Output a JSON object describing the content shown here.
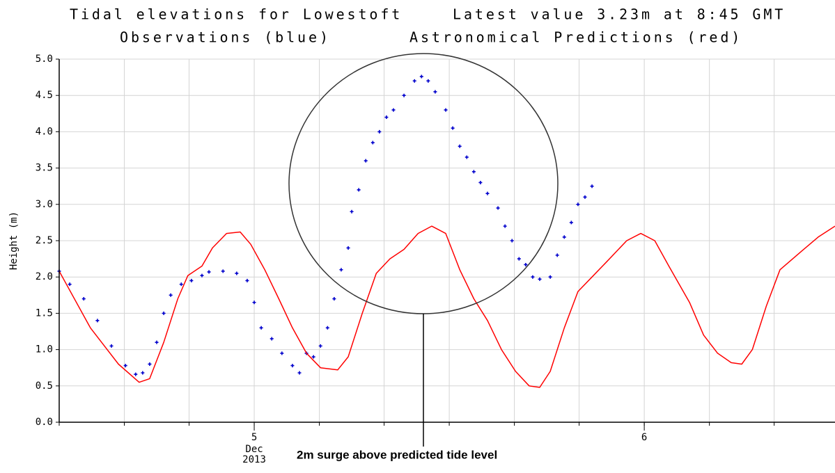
{
  "chart_data": {
    "type": "scatter-line",
    "title": "Tidal elevations for Lowestoft",
    "subtitle": "Latest value 3.23m at 8:45 GMT",
    "ylabel": "Height (m)",
    "annotation": "2m surge above predicted tide level",
    "x_month": "Dec",
    "x_year": "2013",
    "xlim": [
      4.5,
      6.489
    ],
    "xticks": [
      5,
      6
    ],
    "xgrid": [
      4.5,
      4.667,
      4.833,
      5,
      5.167,
      5.333,
      5.5,
      5.667,
      5.833,
      6,
      6.167,
      6.333
    ],
    "ylim": [
      0,
      5
    ],
    "yticks": [
      {
        "value": 0,
        "label": "0.0"
      },
      {
        "value": 0.5,
        "label": "0.5"
      },
      {
        "value": 1,
        "label": "1.0"
      },
      {
        "value": 1.5,
        "label": "1.5"
      },
      {
        "value": 2,
        "label": "2.0"
      },
      {
        "value": 2.5,
        "label": "2.5"
      },
      {
        "value": 3,
        "label": "3.0"
      },
      {
        "value": 3.5,
        "label": "3.5"
      },
      {
        "value": 4,
        "label": "4.0"
      },
      {
        "value": 4.5,
        "label": "4.5"
      },
      {
        "value": 5,
        "label": "5.0"
      }
    ],
    "grid": true,
    "series": [
      {
        "name": "Observations (blue)",
        "color": "#0000cc",
        "style": "markers",
        "x": [
          4.5,
          4.527,
          4.563,
          4.598,
          4.634,
          4.67,
          4.696,
          4.714,
          4.732,
          4.75,
          4.768,
          4.786,
          4.813,
          4.839,
          4.866,
          4.884,
          4.92,
          4.955,
          4.982,
          5.0,
          5.018,
          5.045,
          5.071,
          5.098,
          5.116,
          5.134,
          5.152,
          5.17,
          5.188,
          5.205,
          5.223,
          5.241,
          5.25,
          5.268,
          5.286,
          5.304,
          5.321,
          5.339,
          5.357,
          5.384,
          5.411,
          5.429,
          5.446,
          5.464,
          5.491,
          5.509,
          5.527,
          5.545,
          5.563,
          5.58,
          5.598,
          5.625,
          5.643,
          5.661,
          5.679,
          5.696,
          5.714,
          5.732,
          5.759,
          5.777,
          5.795,
          5.813,
          5.83,
          5.848,
          5.866
        ],
        "values": [
          2.08,
          1.9,
          1.7,
          1.4,
          1.05,
          0.78,
          0.66,
          0.68,
          0.8,
          1.1,
          1.5,
          1.75,
          1.9,
          1.95,
          2.02,
          2.07,
          2.08,
          2.05,
          1.95,
          1.65,
          1.3,
          1.15,
          0.95,
          0.78,
          0.68,
          0.95,
          0.9,
          1.05,
          1.3,
          1.7,
          2.1,
          2.4,
          2.9,
          3.2,
          3.6,
          3.85,
          4.0,
          4.2,
          4.3,
          4.5,
          4.7,
          4.76,
          4.7,
          4.55,
          4.3,
          4.05,
          3.8,
          3.65,
          3.45,
          3.3,
          3.15,
          2.95,
          2.7,
          2.5,
          2.25,
          2.17,
          2.0,
          1.97,
          2.0,
          2.3,
          2.55,
          2.75,
          3.0,
          3.1,
          3.25
        ]
      },
      {
        "name": "Astronomical Predictions (red)",
        "color": "#ff0000",
        "style": "line",
        "x": [
          4.5,
          4.58,
          4.652,
          4.705,
          4.732,
          4.768,
          4.804,
          4.83,
          4.866,
          4.893,
          4.929,
          4.964,
          4.991,
          5.027,
          5.063,
          5.098,
          5.134,
          5.17,
          5.214,
          5.241,
          5.277,
          5.313,
          5.348,
          5.384,
          5.42,
          5.455,
          5.491,
          5.527,
          5.563,
          5.598,
          5.634,
          5.67,
          5.705,
          5.732,
          5.759,
          5.795,
          5.83,
          5.866,
          5.902,
          5.955,
          5.991,
          6.027,
          6.063,
          6.116,
          6.152,
          6.188,
          6.223,
          6.25,
          6.277,
          6.313,
          6.348,
          6.402,
          6.446,
          6.489
        ],
        "values": [
          2.08,
          1.3,
          0.8,
          0.55,
          0.6,
          1.1,
          1.7,
          2.02,
          2.15,
          2.4,
          2.6,
          2.62,
          2.45,
          2.1,
          1.7,
          1.3,
          0.95,
          0.75,
          0.72,
          0.9,
          1.5,
          2.05,
          2.25,
          2.38,
          2.6,
          2.7,
          2.6,
          2.1,
          1.7,
          1.4,
          1.0,
          0.7,
          0.5,
          0.48,
          0.7,
          1.3,
          1.8,
          2.0,
          2.2,
          2.5,
          2.6,
          2.5,
          2.15,
          1.65,
          1.2,
          0.95,
          0.82,
          0.8,
          1.0,
          1.6,
          2.1,
          2.35,
          2.55,
          2.7
        ]
      }
    ]
  }
}
